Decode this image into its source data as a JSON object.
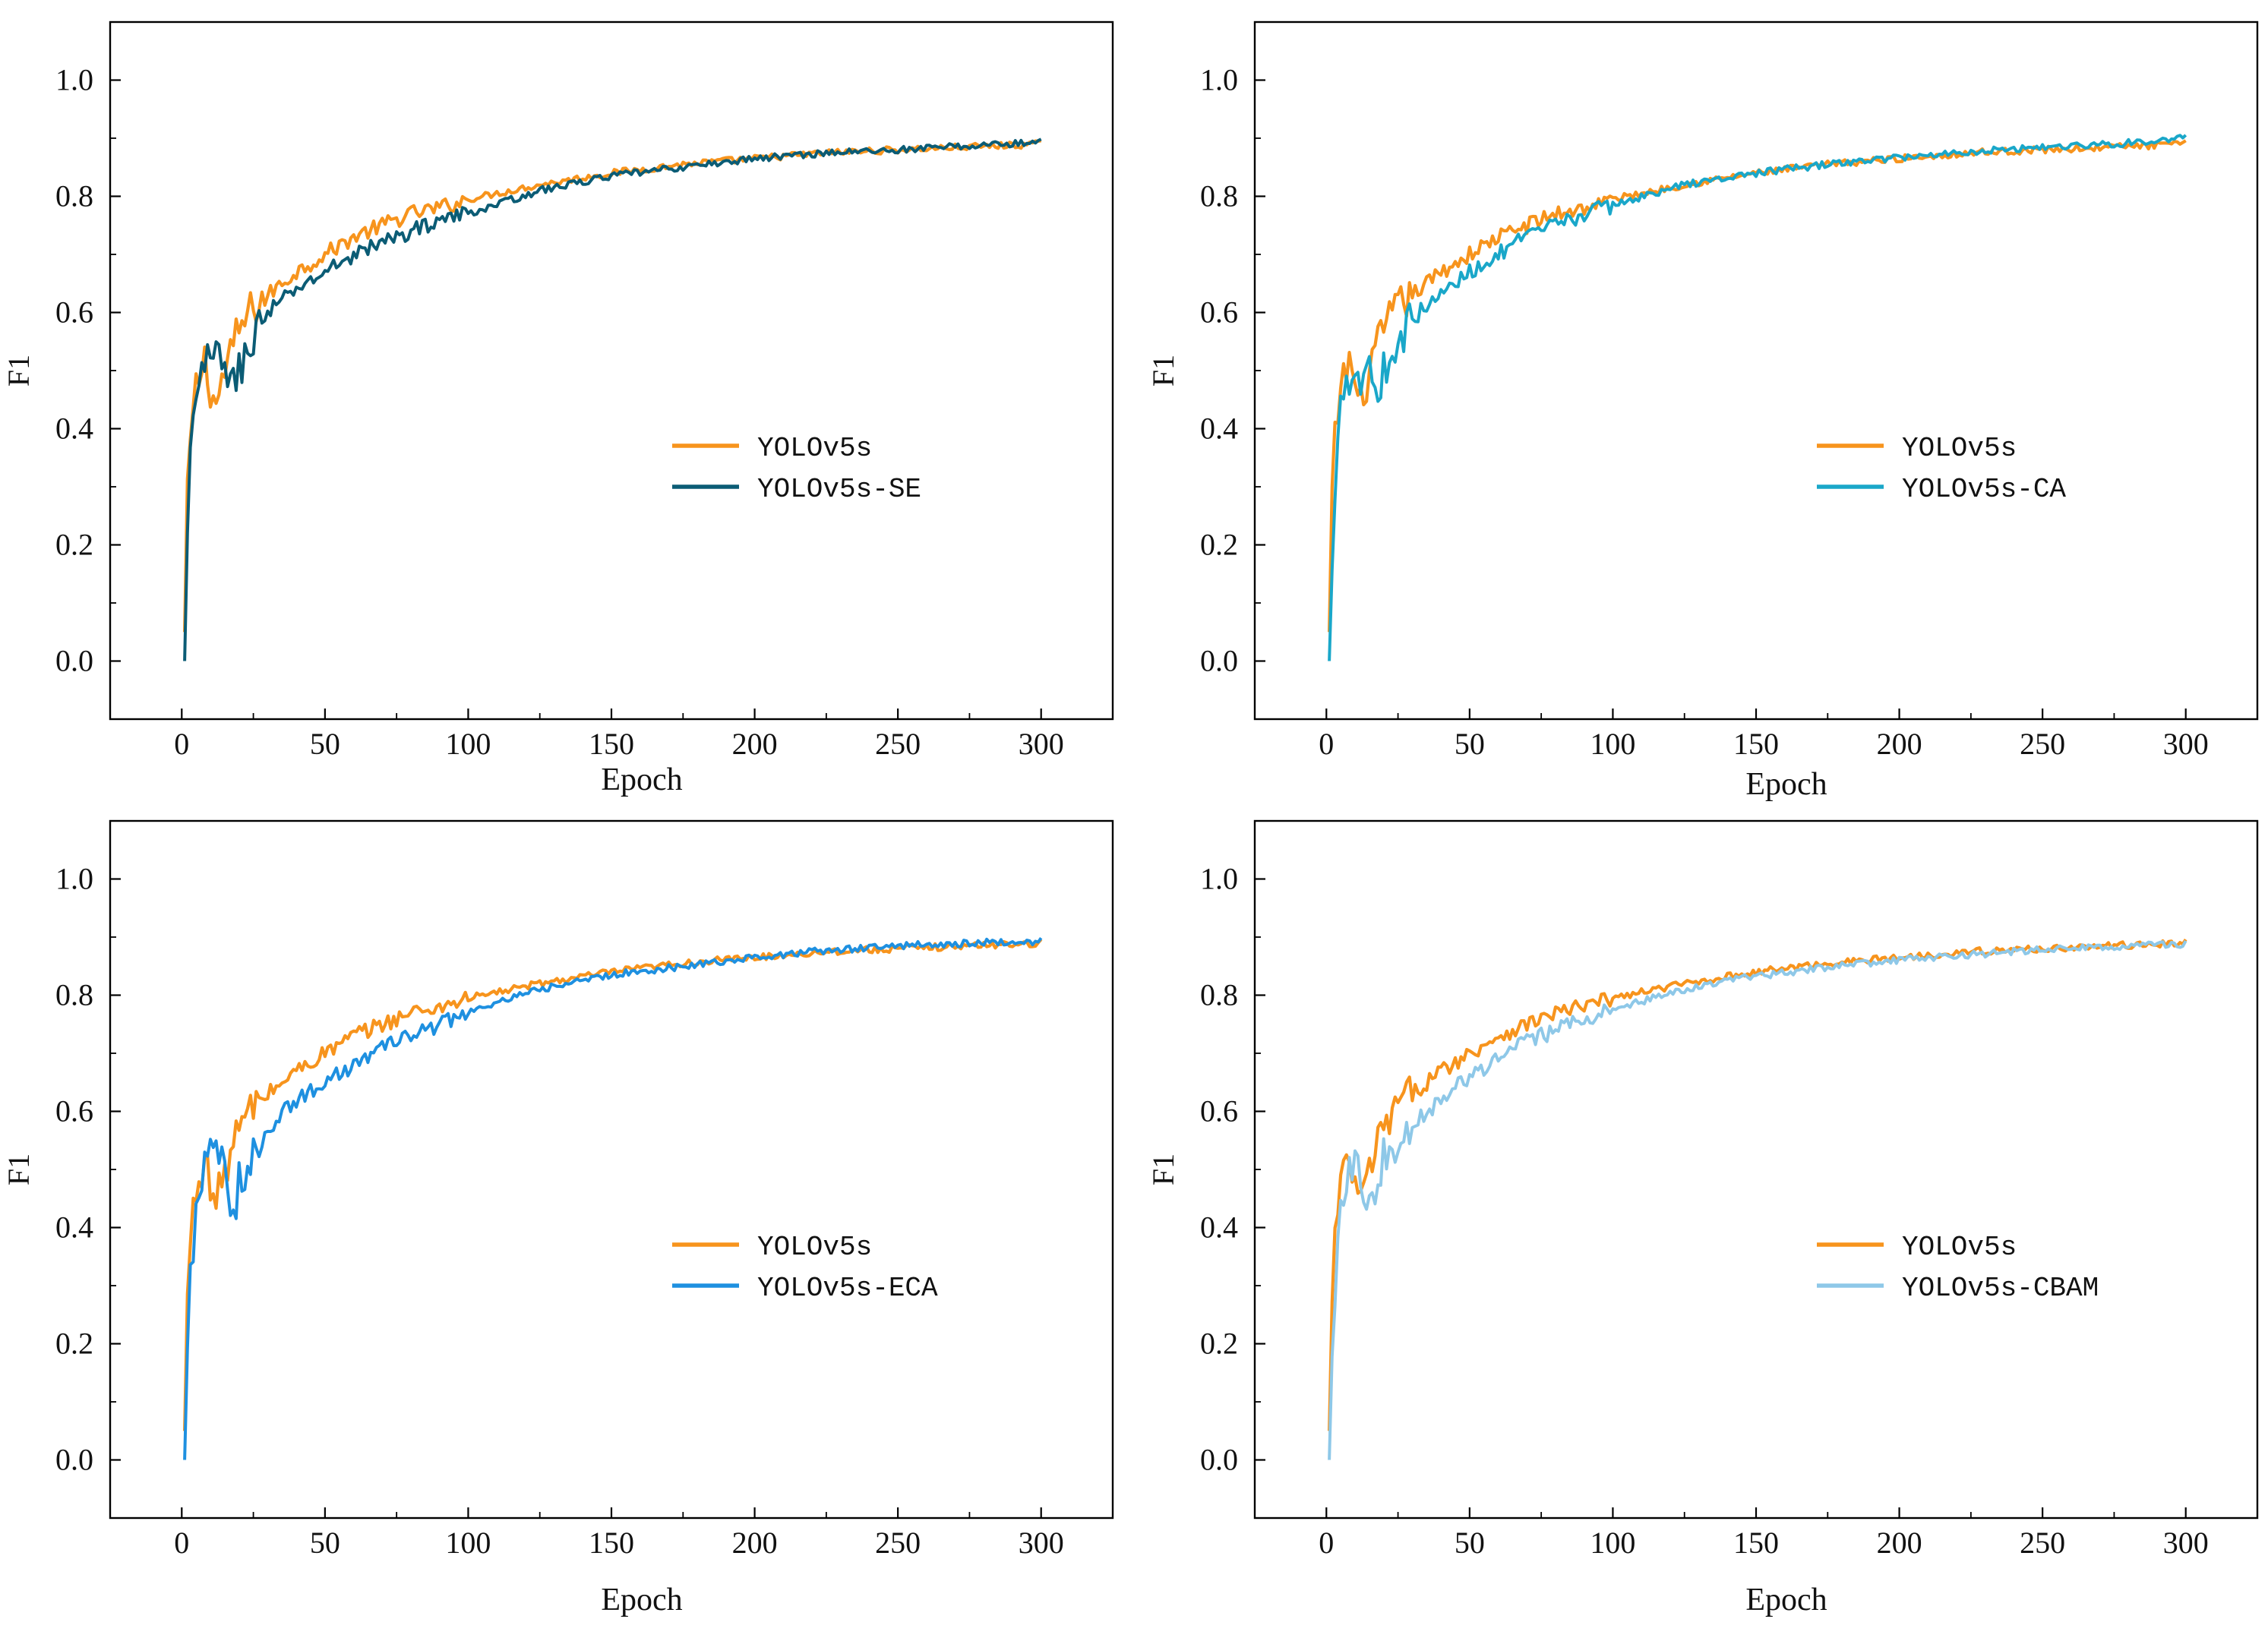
{
  "figure": {
    "description_free": true
  },
  "chart_data": [
    {
      "type": "line",
      "xlabel": "Epoch",
      "ylabel": "F1",
      "xlim": [
        -25,
        325
      ],
      "ylim": [
        -0.1,
        1.1
      ],
      "xticks": [
        0,
        50,
        100,
        150,
        200,
        250,
        300
      ],
      "yticks": [
        0.0,
        0.2,
        0.4,
        0.6,
        0.8,
        1.0
      ],
      "xtick_labels": [
        "0",
        "50",
        "100",
        "150",
        "200",
        "250",
        "300"
      ],
      "ytick_labels": [
        "0.0",
        "0.2",
        "0.4",
        "0.6",
        "0.8",
        "1.0"
      ],
      "legend_position": "center-right",
      "series": [
        {
          "name": "YOLOv5s",
          "color": "#F7941D",
          "x": [
            1,
            2,
            3,
            5,
            8,
            10,
            12,
            15,
            20,
            25,
            30,
            40,
            50,
            60,
            70,
            80,
            90,
            100,
            125,
            150,
            175,
            200,
            225,
            250,
            275,
            300
          ],
          "y": [
            0.05,
            0.28,
            0.38,
            0.47,
            0.52,
            0.47,
            0.44,
            0.5,
            0.57,
            0.61,
            0.63,
            0.67,
            0.7,
            0.73,
            0.75,
            0.77,
            0.78,
            0.795,
            0.82,
            0.84,
            0.855,
            0.865,
            0.875,
            0.88,
            0.885,
            0.89
          ]
        },
        {
          "name": "YOLOv5s-SE",
          "color": "#0B5C75",
          "x": [
            1,
            2,
            3,
            5,
            8,
            10,
            12,
            15,
            18,
            20,
            25,
            30,
            40,
            50,
            60,
            70,
            80,
            90,
            100,
            125,
            150,
            175,
            200,
            225,
            250,
            275,
            300
          ],
          "y": [
            0.0,
            0.2,
            0.35,
            0.45,
            0.52,
            0.5,
            0.53,
            0.52,
            0.47,
            0.5,
            0.56,
            0.6,
            0.64,
            0.67,
            0.7,
            0.72,
            0.74,
            0.76,
            0.77,
            0.81,
            0.835,
            0.85,
            0.865,
            0.875,
            0.88,
            0.887,
            0.893
          ]
        }
      ]
    },
    {
      "type": "line",
      "xlabel": "Epoch",
      "ylabel": "F1",
      "xlim": [
        -25,
        325
      ],
      "ylim": [
        -0.1,
        1.1
      ],
      "xticks": [
        0,
        50,
        100,
        150,
        200,
        250,
        300
      ],
      "yticks": [
        0.0,
        0.2,
        0.4,
        0.6,
        0.8,
        1.0
      ],
      "xtick_labels": [
        "0",
        "50",
        "100",
        "150",
        "200",
        "250",
        "300"
      ],
      "ytick_labels": [
        "0.0",
        "0.2",
        "0.4",
        "0.6",
        "0.8",
        "1.0"
      ],
      "legend_position": "center-right",
      "series": [
        {
          "name": "YOLOv5s",
          "color": "#F7941D",
          "x": [
            1,
            2,
            3,
            5,
            8,
            10,
            12,
            15,
            20,
            25,
            30,
            40,
            50,
            60,
            70,
            80,
            90,
            100,
            125,
            150,
            175,
            200,
            225,
            250,
            275,
            300
          ],
          "y": [
            0.05,
            0.28,
            0.38,
            0.47,
            0.52,
            0.47,
            0.44,
            0.5,
            0.57,
            0.61,
            0.63,
            0.67,
            0.7,
            0.73,
            0.75,
            0.77,
            0.78,
            0.795,
            0.82,
            0.84,
            0.855,
            0.865,
            0.875,
            0.88,
            0.885,
            0.89
          ]
        },
        {
          "name": "YOLOv5s-CA",
          "color": "#1AA7C9",
          "x": [
            1,
            2,
            3,
            5,
            8,
            10,
            12,
            15,
            18,
            20,
            25,
            30,
            40,
            50,
            60,
            70,
            80,
            90,
            100,
            125,
            150,
            175,
            200,
            225,
            250,
            275,
            300
          ],
          "y": [
            0.0,
            0.15,
            0.3,
            0.48,
            0.49,
            0.5,
            0.48,
            0.52,
            0.45,
            0.5,
            0.55,
            0.59,
            0.63,
            0.67,
            0.7,
            0.73,
            0.75,
            0.77,
            0.785,
            0.82,
            0.84,
            0.855,
            0.867,
            0.877,
            0.885,
            0.89,
            0.9
          ]
        }
      ]
    },
    {
      "type": "line",
      "xlabel": "Epoch",
      "ylabel": "F1",
      "xlim": [
        -25,
        325
      ],
      "ylim": [
        -0.1,
        1.1
      ],
      "xticks": [
        0,
        50,
        100,
        150,
        200,
        250,
        300
      ],
      "yticks": [
        0.0,
        0.2,
        0.4,
        0.6,
        0.8,
        1.0
      ],
      "xtick_labels": [
        "0",
        "50",
        "100",
        "150",
        "200",
        "250",
        "300"
      ],
      "ytick_labels": [
        "0.0",
        "0.2",
        "0.4",
        "0.6",
        "0.8",
        "1.0"
      ],
      "legend_position": "center-right",
      "series": [
        {
          "name": "YOLOv5s",
          "color": "#F7941D",
          "x": [
            1,
            2,
            3,
            5,
            8,
            10,
            12,
            15,
            20,
            25,
            30,
            40,
            50,
            60,
            70,
            80,
            90,
            100,
            125,
            150,
            175,
            200,
            225,
            250,
            275,
            300
          ],
          "y": [
            0.05,
            0.28,
            0.38,
            0.47,
            0.52,
            0.47,
            0.44,
            0.5,
            0.57,
            0.61,
            0.63,
            0.67,
            0.7,
            0.73,
            0.75,
            0.77,
            0.78,
            0.795,
            0.82,
            0.84,
            0.855,
            0.865,
            0.875,
            0.88,
            0.885,
            0.89
          ]
        },
        {
          "name": "YOLOv5s-ECA",
          "color": "#1E90E0",
          "x": [
            1,
            2,
            3,
            5,
            8,
            10,
            12,
            15,
            18,
            20,
            25,
            30,
            40,
            50,
            60,
            70,
            80,
            90,
            100,
            125,
            150,
            175,
            200,
            225,
            250,
            275,
            300
          ],
          "y": [
            0.0,
            0.2,
            0.33,
            0.42,
            0.5,
            0.52,
            0.54,
            0.5,
            0.4,
            0.48,
            0.53,
            0.57,
            0.62,
            0.65,
            0.68,
            0.71,
            0.73,
            0.75,
            0.77,
            0.81,
            0.835,
            0.85,
            0.865,
            0.877,
            0.885,
            0.89,
            0.893
          ]
        }
      ]
    },
    {
      "type": "line",
      "xlabel": "Epoch",
      "ylabel": "F1",
      "xlim": [
        -25,
        325
      ],
      "ylim": [
        -0.1,
        1.1
      ],
      "xticks": [
        0,
        50,
        100,
        150,
        200,
        250,
        300
      ],
      "yticks": [
        0.0,
        0.2,
        0.4,
        0.6,
        0.8,
        1.0
      ],
      "xtick_labels": [
        "0",
        "50",
        "100",
        "150",
        "200",
        "250",
        "300"
      ],
      "ytick_labels": [
        "0.0",
        "0.2",
        "0.4",
        "0.6",
        "0.8",
        "1.0"
      ],
      "legend_position": "center-right",
      "series": [
        {
          "name": "YOLOv5s",
          "color": "#F7941D",
          "x": [
            1,
            2,
            3,
            5,
            8,
            10,
            12,
            15,
            20,
            25,
            30,
            40,
            50,
            60,
            70,
            80,
            90,
            100,
            125,
            150,
            175,
            200,
            225,
            250,
            275,
            300
          ],
          "y": [
            0.05,
            0.28,
            0.38,
            0.47,
            0.52,
            0.47,
            0.44,
            0.5,
            0.57,
            0.61,
            0.63,
            0.67,
            0.7,
            0.73,
            0.75,
            0.77,
            0.78,
            0.795,
            0.82,
            0.84,
            0.855,
            0.865,
            0.875,
            0.88,
            0.885,
            0.89
          ]
        },
        {
          "name": "YOLOv5s-CBAM",
          "color": "#8EC8E8",
          "x": [
            1,
            2,
            3,
            5,
            8,
            10,
            12,
            15,
            18,
            20,
            25,
            30,
            40,
            50,
            60,
            70,
            80,
            90,
            100,
            125,
            150,
            175,
            200,
            225,
            250,
            275,
            300
          ],
          "y": [
            0.0,
            0.2,
            0.3,
            0.45,
            0.5,
            0.53,
            0.5,
            0.43,
            0.48,
            0.52,
            0.55,
            0.58,
            0.62,
            0.66,
            0.69,
            0.72,
            0.74,
            0.76,
            0.775,
            0.81,
            0.833,
            0.848,
            0.86,
            0.87,
            0.878,
            0.884,
            0.888
          ]
        }
      ]
    }
  ]
}
